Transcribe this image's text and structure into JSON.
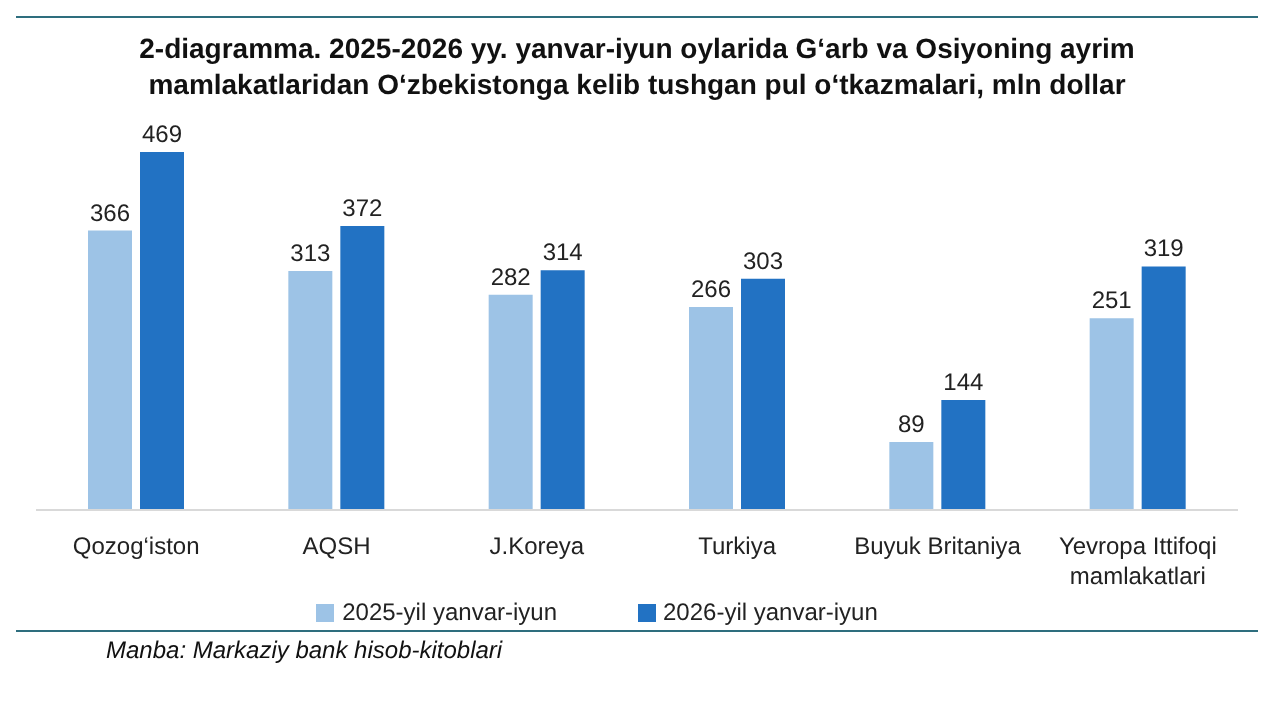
{
  "chart_data": {
    "type": "bar",
    "title": "2-diagramma. 2025-2026 yy. yanvar-iyun oylarida G‘arb va Osiyoning ayrim mamlakatlaridan O‘zbekistonga kelib tushgan pul o‘tkazmalari, mln dollar",
    "categories": [
      "Qozog‘iston",
      "AQSH",
      "J.Koreya",
      "Turkiya",
      "Buyuk Britaniya",
      "Yevropa Ittifoqi mamlakatlari"
    ],
    "series": [
      {
        "name": "2025-yil yanvar-iyun",
        "color": "#9dc3e6",
        "values": [
          366,
          313,
          282,
          266,
          89,
          251
        ]
      },
      {
        "name": "2026-yil yanvar-iyun",
        "color": "#2272c3",
        "values": [
          469,
          372,
          314,
          303,
          144,
          319
        ]
      }
    ],
    "data_labels": true,
    "legend": "bottom",
    "grid": false,
    "annotations": [
      "Manba: Markaziy bank hisob-kitoblari"
    ]
  }
}
